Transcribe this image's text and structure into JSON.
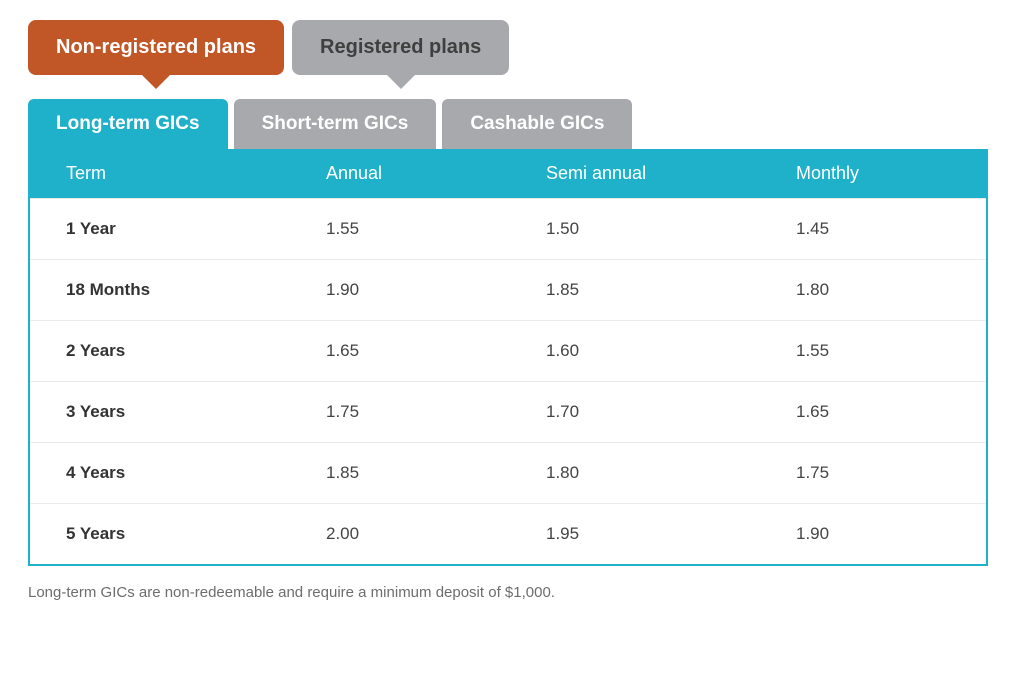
{
  "colors": {
    "accent_orange": "#c15627",
    "inactive_grey": "#a7a9ac",
    "teal": "#1fb0ca",
    "row_divider": "#eceae6",
    "footnote_text": "#6d6d6d"
  },
  "plan_tabs": {
    "active_index": 0,
    "items": [
      {
        "label": "Non-registered plans"
      },
      {
        "label": "Registered plans"
      }
    ]
  },
  "gic_tabs": {
    "active_index": 0,
    "items": [
      {
        "label": "Long-term GICs"
      },
      {
        "label": "Short-term GICs"
      },
      {
        "label": "Cashable GICs"
      }
    ]
  },
  "table": {
    "columns": [
      "Term",
      "Annual",
      "Semi annual",
      "Monthly"
    ],
    "rows": [
      {
        "term": "1 Year",
        "annual": "1.55",
        "semi": "1.50",
        "monthly": "1.45"
      },
      {
        "term": "18 Months",
        "annual": "1.90",
        "semi": "1.85",
        "monthly": "1.80"
      },
      {
        "term": "2 Years",
        "annual": "1.65",
        "semi": "1.60",
        "monthly": "1.55"
      },
      {
        "term": "3 Years",
        "annual": "1.75",
        "semi": "1.70",
        "monthly": "1.65"
      },
      {
        "term": "4 Years",
        "annual": "1.85",
        "semi": "1.80",
        "monthly": "1.75"
      },
      {
        "term": "5 Years",
        "annual": "2.00",
        "semi": "1.95",
        "monthly": "1.90"
      }
    ]
  },
  "footnote": "Long-term GICs are non-redeemable and require a minimum deposit of $1,000."
}
